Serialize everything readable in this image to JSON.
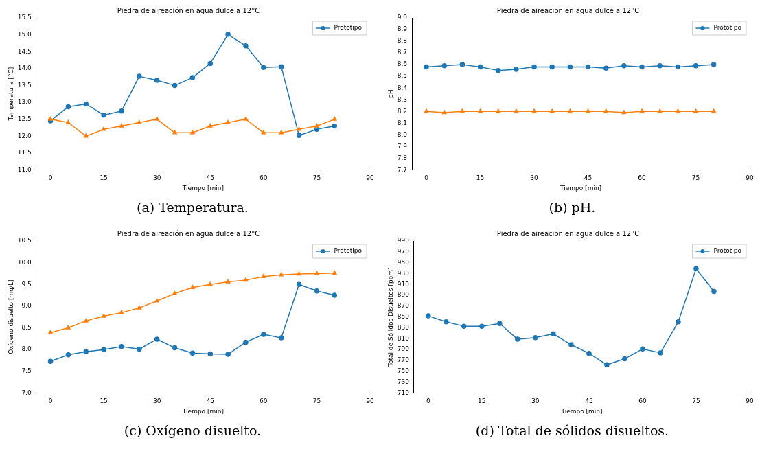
{
  "chart_data": [
    {
      "type": "line",
      "title": "Piedra de aireación en agua dulce a 12°C",
      "xlabel": "Tiempo [min]",
      "ylabel": "Temperatura [°C]",
      "annotations": [
        "(a) Temperatura."
      ],
      "x": [
        0,
        5,
        10,
        15,
        20,
        25,
        30,
        35,
        40,
        45,
        50,
        55,
        60,
        65,
        70,
        75,
        80
      ],
      "xlim": [
        -4,
        90
      ],
      "xticks": [
        0,
        15,
        30,
        45,
        60,
        75,
        90
      ],
      "ylim": [
        11,
        15.5
      ],
      "yticks": [
        {
          "value": 11,
          "label": "11.0"
        },
        11.5,
        {
          "value": 12,
          "label": "12.0"
        },
        12.5,
        {
          "value": 13,
          "label": "13.0"
        },
        13.5,
        {
          "value": 14,
          "label": "14.0"
        },
        14.5,
        {
          "value": 15,
          "label": "15.0"
        },
        15.5
      ],
      "grid": false,
      "legend": "top right",
      "series": [
        {
          "name": "Prototipo",
          "color": "#1f77b4",
          "marker": "circle",
          "values": [
            12.45,
            12.87,
            12.95,
            12.62,
            12.74,
            13.77,
            13.65,
            13.5,
            13.73,
            14.15,
            15.01,
            14.67,
            14.03,
            14.05,
            12.02,
            12.2,
            12.3
          ]
        },
        {
          "color": "#ff7f0e",
          "marker": "triangle",
          "values": [
            12.5,
            12.4,
            12.0,
            12.2,
            12.3,
            12.4,
            12.5,
            12.1,
            12.1,
            12.3,
            12.4,
            12.5,
            12.1,
            12.1,
            12.2,
            12.3,
            12.5
          ]
        }
      ]
    },
    {
      "type": "line",
      "title": "Piedra de aireación en agua dulce a 12°C",
      "xlabel": "Tiempo [min]",
      "ylabel": "pH",
      "annotations": [
        "(b) pH."
      ],
      "x": [
        0,
        5,
        10,
        15,
        20,
        25,
        30,
        35,
        40,
        45,
        50,
        55,
        60,
        65,
        70,
        75,
        80
      ],
      "xlim": [
        -4,
        90
      ],
      "xticks": [
        0,
        15,
        30,
        45,
        60,
        75,
        90
      ],
      "ylim": [
        7.7,
        9.0
      ],
      "yticks": [
        7.7,
        7.8,
        7.9,
        {
          "value": 8,
          "label": "8.0"
        },
        8.1,
        8.2,
        8.3,
        8.4,
        8.5,
        8.6,
        8.7,
        8.8,
        8.9,
        {
          "value": 9,
          "label": "9.0"
        }
      ],
      "grid": false,
      "legend": "top right",
      "series": [
        {
          "name": "Prototipo",
          "color": "#1f77b4",
          "marker": "circle",
          "values": [
            8.58,
            8.59,
            8.6,
            8.58,
            8.55,
            8.56,
            8.58,
            8.58,
            8.58,
            8.58,
            8.57,
            8.59,
            8.58,
            8.59,
            8.58,
            8.59,
            8.6
          ]
        },
        {
          "color": "#ff7f0e",
          "marker": "triangle",
          "values": [
            8.2,
            8.19,
            8.2,
            8.2,
            8.2,
            8.2,
            8.2,
            8.2,
            8.2,
            8.2,
            8.2,
            8.19,
            8.2,
            8.2,
            8.2,
            8.2,
            8.2
          ]
        }
      ]
    },
    {
      "type": "line",
      "title": "Piedra de aireación en agua dulce a 12°C",
      "xlabel": "Tiempo [min]",
      "ylabel": "Oxígeno disuelto [mg/L]",
      "annotations": [
        "(c) Oxígeno disuelto."
      ],
      "x": [
        0,
        5,
        10,
        15,
        20,
        25,
        30,
        35,
        40,
        45,
        50,
        55,
        60,
        65,
        70,
        75,
        80
      ],
      "xlim": [
        -4,
        90
      ],
      "xticks": [
        0,
        15,
        30,
        45,
        60,
        75,
        90
      ],
      "ylim": [
        7,
        10.5
      ],
      "yticks": [
        {
          "value": 7,
          "label": "7.0"
        },
        7.5,
        {
          "value": 8,
          "label": "8.0"
        },
        8.5,
        {
          "value": 9,
          "label": "9.0"
        },
        9.5,
        {
          "value": 10,
          "label": "10.0"
        },
        10.5
      ],
      "grid": false,
      "legend": "top right",
      "series": [
        {
          "name": "Prototipo",
          "color": "#1f77b4",
          "marker": "circle",
          "values": [
            7.73,
            7.88,
            7.95,
            8.0,
            8.07,
            8.01,
            8.24,
            8.04,
            7.92,
            7.9,
            7.89,
            8.17,
            8.35,
            8.27,
            9.5,
            9.35,
            9.25
          ]
        },
        {
          "color": "#ff7f0e",
          "marker": "triangle",
          "values": [
            8.39,
            8.5,
            8.66,
            8.77,
            8.85,
            8.96,
            9.12,
            9.29,
            9.43,
            9.5,
            9.56,
            9.6,
            9.68,
            9.72,
            9.74,
            9.75,
            9.76
          ]
        }
      ]
    },
    {
      "type": "line",
      "title": "Piedra de aireación en agua dulce a 12°C",
      "xlabel": "Tiempo [min]",
      "ylabel": "Total de Sólidos Disueltos [ppm]",
      "annotations": [
        "(d) Total de sólidos disueltos."
      ],
      "x": [
        0,
        5,
        10,
        15,
        20,
        25,
        30,
        35,
        40,
        45,
        50,
        55,
        60,
        65,
        70,
        75,
        80
      ],
      "xlim": [
        -4,
        90
      ],
      "xticks": [
        0,
        15,
        30,
        45,
        60,
        75,
        90
      ],
      "ylim": [
        710,
        990
      ],
      "yticks": [
        710,
        730,
        750,
        770,
        790,
        810,
        830,
        850,
        870,
        890,
        910,
        930,
        950,
        970,
        990
      ],
      "grid": false,
      "legend": "top right",
      "series": [
        {
          "name": "Prototipo",
          "color": "#1f77b4",
          "marker": "circle",
          "values": [
            852,
            841,
            833,
            833,
            838,
            809,
            812,
            819,
            799,
            783,
            762,
            773,
            791,
            784,
            841,
            939,
            897
          ]
        }
      ]
    }
  ]
}
